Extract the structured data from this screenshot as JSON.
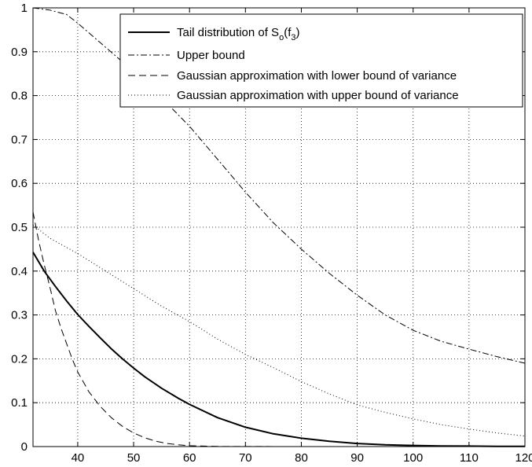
{
  "chart_data": {
    "type": "line",
    "title": "",
    "xlabel": "",
    "ylabel": "",
    "xlim": [
      32,
      120
    ],
    "ylim": [
      0,
      1
    ],
    "xticks": [
      40,
      50,
      60,
      70,
      80,
      90,
      100,
      110,
      120
    ],
    "yticks": [
      0,
      0.1,
      0.2,
      0.3,
      0.4,
      0.5,
      0.6,
      0.7,
      0.8,
      0.9,
      1
    ],
    "grid": true,
    "legend_position": "top-right",
    "legend": {
      "tail_prefix": "Tail distribution of S",
      "tail_sub1": "o",
      "tail_mid": "(f",
      "tail_sub2": "3",
      "tail_suffix": ")",
      "upper": "Upper bound",
      "gauss_lower": "Gaussian approximation with lower bound of variance",
      "gauss_upper": "Gaussian approximation with upper bound of variance"
    },
    "series": [
      {
        "key": "tail",
        "style": "solid",
        "x": [
          32,
          34,
          36,
          38,
          40,
          42,
          44,
          46,
          48,
          50,
          52,
          55,
          58,
          60,
          65,
          70,
          75,
          80,
          85,
          90,
          95,
          100,
          105,
          110,
          115,
          120
        ],
        "values": [
          0.443,
          0.4,
          0.365,
          0.332,
          0.301,
          0.274,
          0.248,
          0.223,
          0.2,
          0.179,
          0.159,
          0.133,
          0.11,
          0.096,
          0.066,
          0.044,
          0.029,
          0.019,
          0.012,
          0.007,
          0.004,
          0.0025,
          0.0015,
          0.001,
          0.0006,
          0.0004
        ]
      },
      {
        "key": "upper",
        "style": "dashdot",
        "x": [
          32,
          35,
          38,
          40,
          45,
          50,
          55,
          60,
          65,
          70,
          75,
          80,
          85,
          90,
          95,
          100,
          105,
          110,
          115,
          120
        ],
        "values": [
          1.0,
          0.995,
          0.985,
          0.965,
          0.91,
          0.855,
          0.795,
          0.73,
          0.655,
          0.58,
          0.51,
          0.45,
          0.395,
          0.345,
          0.3,
          0.265,
          0.24,
          0.222,
          0.205,
          0.19
        ]
      },
      {
        "key": "gauss_lower",
        "style": "dashed",
        "x": [
          32,
          33,
          34,
          35,
          36,
          37,
          38,
          39,
          40,
          42,
          44,
          46,
          48,
          50,
          52,
          54,
          56,
          58,
          60,
          65,
          70,
          80,
          90,
          100,
          110,
          120
        ],
        "values": [
          0.535,
          0.47,
          0.415,
          0.365,
          0.31,
          0.27,
          0.235,
          0.2,
          0.17,
          0.125,
          0.092,
          0.066,
          0.046,
          0.031,
          0.02,
          0.012,
          0.007,
          0.004,
          0.002,
          0.0004,
          0.0001,
          0,
          0,
          0,
          0,
          0
        ]
      },
      {
        "key": "gauss_upper",
        "style": "dotted",
        "x": [
          32,
          35,
          40,
          45,
          50,
          55,
          60,
          65,
          70,
          75,
          80,
          85,
          90,
          95,
          100,
          105,
          110,
          115,
          120
        ],
        "values": [
          0.505,
          0.475,
          0.44,
          0.4,
          0.36,
          0.32,
          0.285,
          0.245,
          0.21,
          0.18,
          0.148,
          0.12,
          0.095,
          0.078,
          0.063,
          0.05,
          0.04,
          0.031,
          0.024
        ]
      }
    ]
  }
}
